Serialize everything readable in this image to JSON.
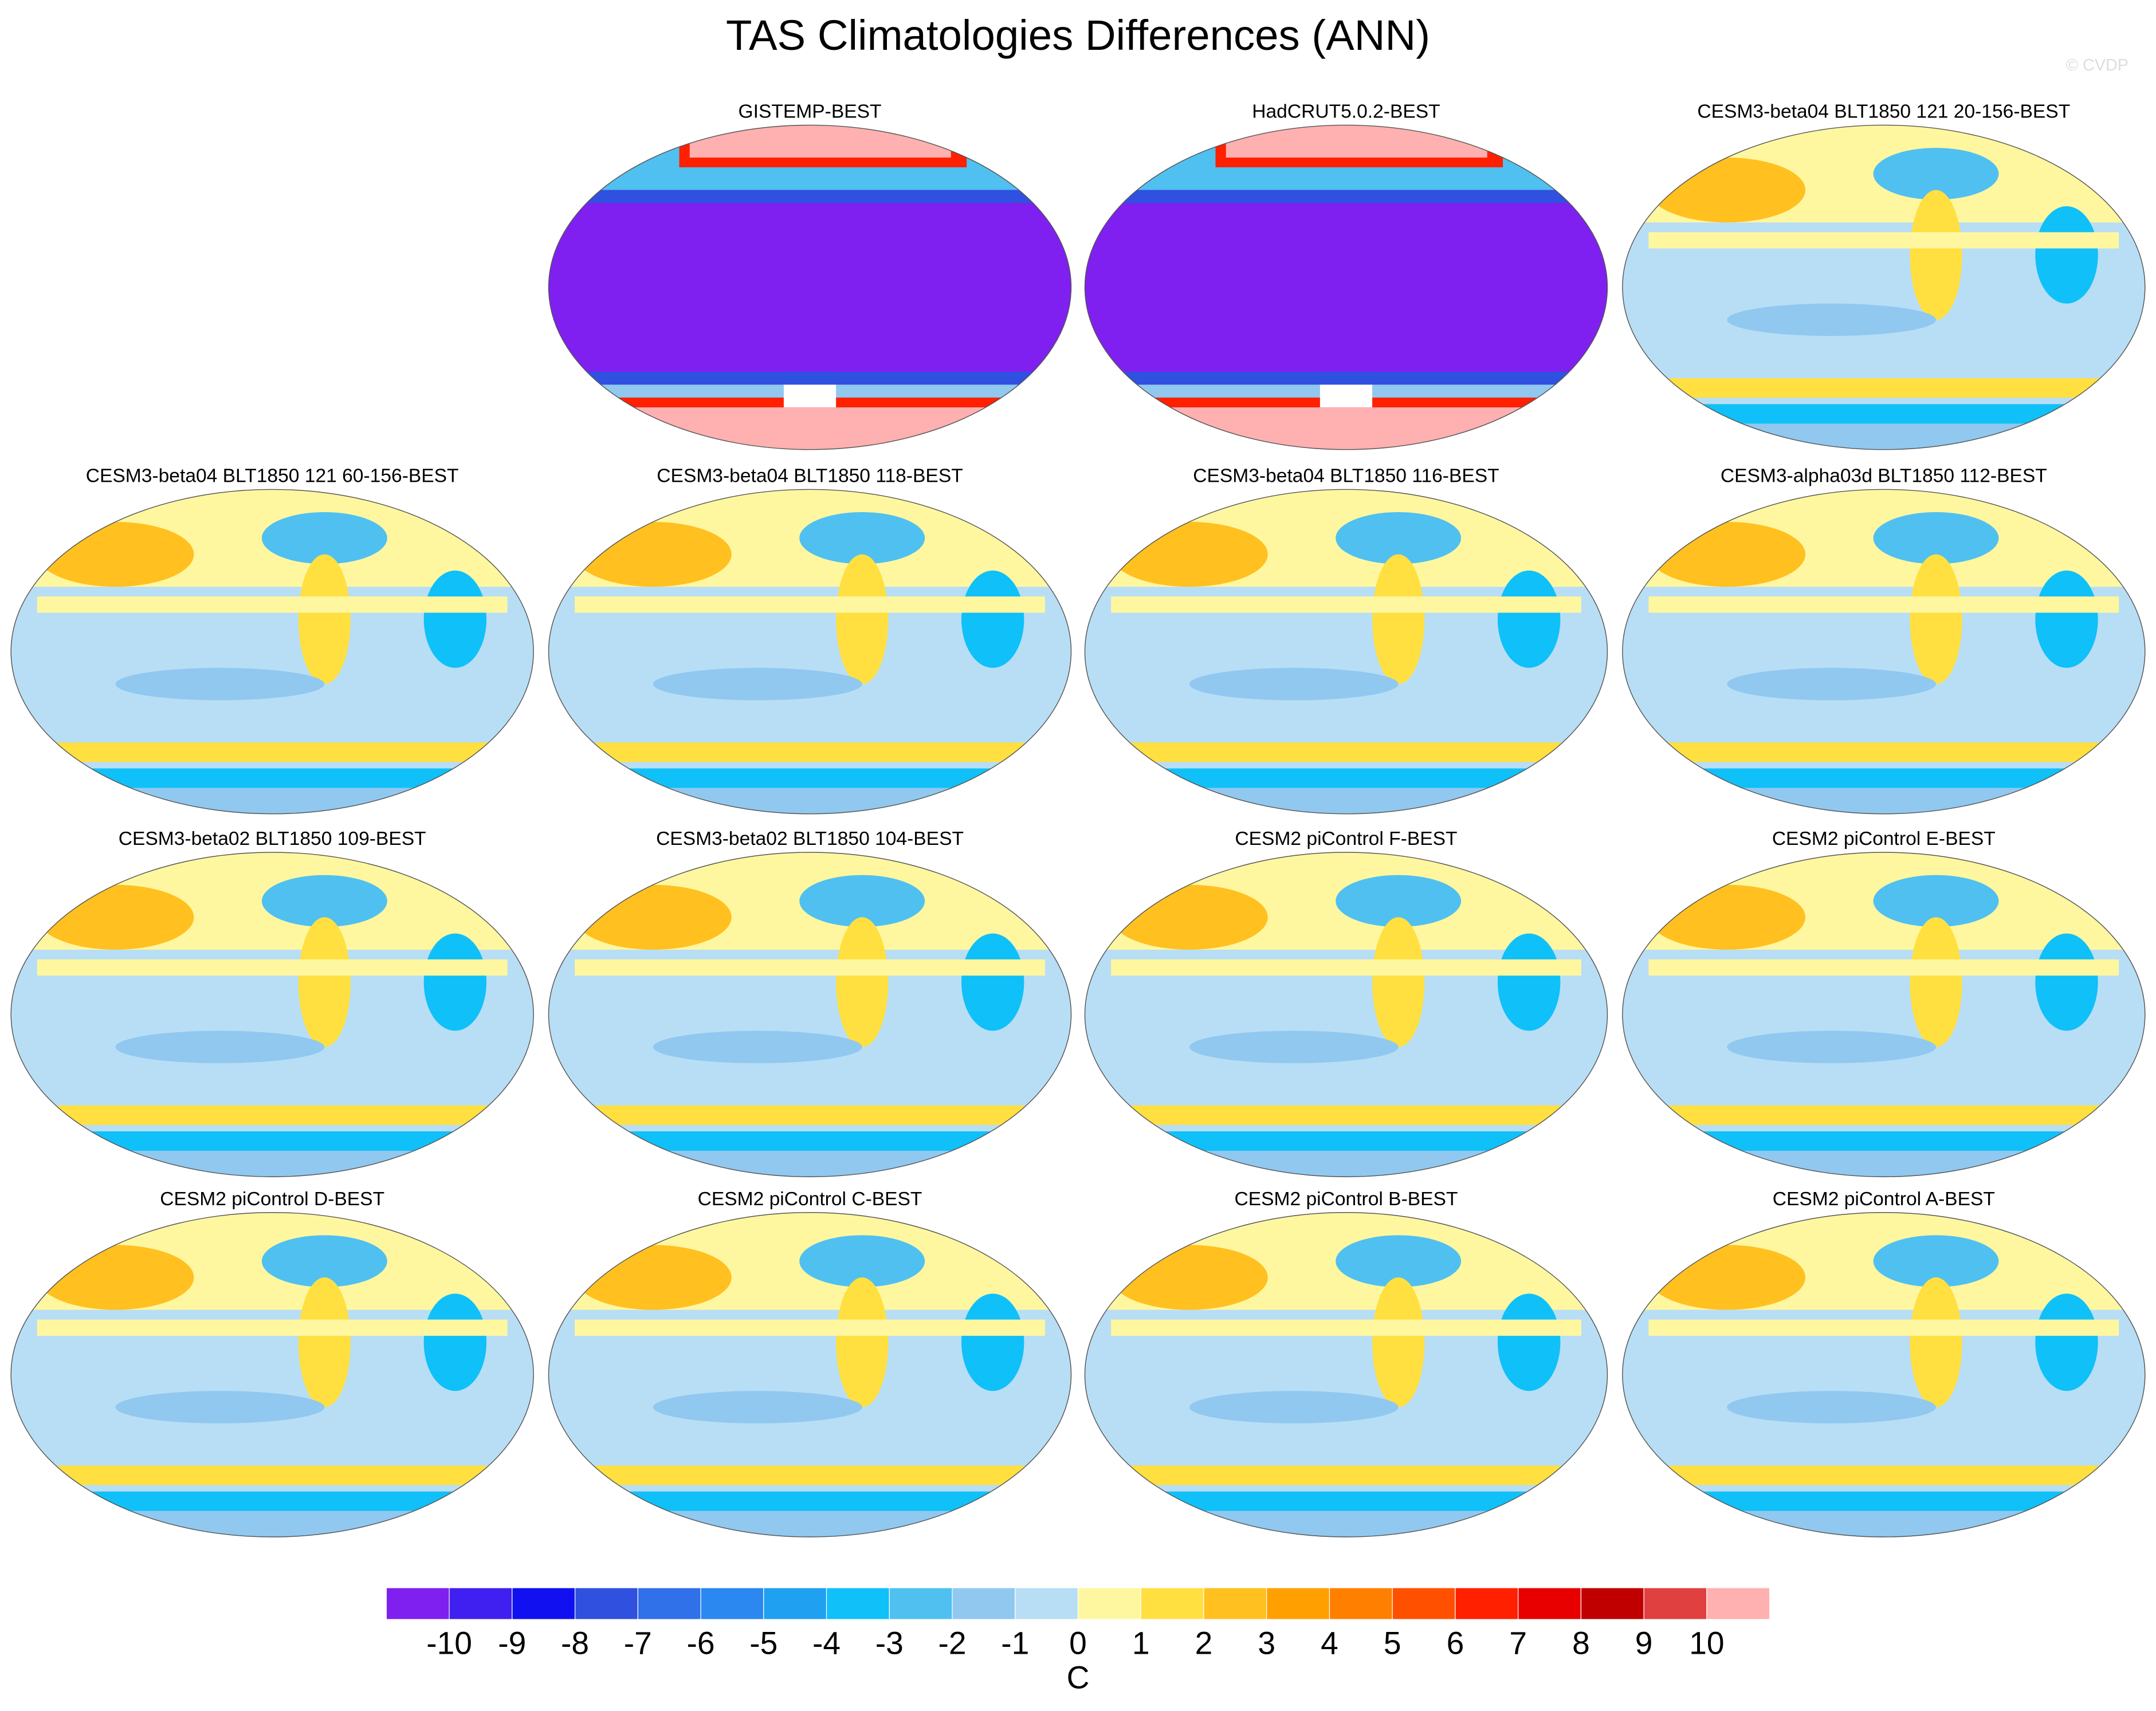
{
  "chart_data": {
    "type": "contour-map-panels",
    "title": "TAS Climatologies Differences (ANN)",
    "watermark": "© CVDP",
    "panels": [
      "GISTEMP-BEST",
      "HadCRUT5.0.2-BEST",
      "CESM3-beta04 BLT1850 121 20-156-BEST",
      "CESM3-beta04 BLT1850 121 60-156-BEST",
      "CESM3-beta04 BLT1850 118-BEST",
      "CESM3-beta04 BLT1850 116-BEST",
      "CESM3-alpha03d BLT1850 112-BEST",
      "CESM3-beta02 BLT1850 109-BEST",
      "CESM3-beta02 BLT1850 104-BEST",
      "CESM2 piControl F-BEST",
      "CESM2 piControl E-BEST",
      "CESM2 piControl D-BEST",
      "CESM2 piControl C-BEST",
      "CESM2 piControl B-BEST",
      "CESM2 piControl A-BEST"
    ],
    "colorbar": {
      "label": "C",
      "ticks": [
        -10,
        -9,
        -8,
        -7,
        -6,
        -5,
        -4,
        -3,
        -2,
        -1,
        0,
        1,
        2,
        3,
        4,
        5,
        6,
        7,
        8,
        9,
        10
      ],
      "colors": [
        "#7f20f0",
        "#4020f0",
        "#1010f0",
        "#3050e0",
        "#3070e8",
        "#2a88f0",
        "#20a0f0",
        "#10c0f8",
        "#50c0f0",
        "#90c8f0",
        "#b8def5",
        "#fff7a0",
        "#ffe040",
        "#ffc020",
        "#ffa000",
        "#ff8000",
        "#ff5000",
        "#ff2000",
        "#e80000",
        "#c00000",
        "#e04040",
        "#ffb0b0"
      ]
    }
  }
}
